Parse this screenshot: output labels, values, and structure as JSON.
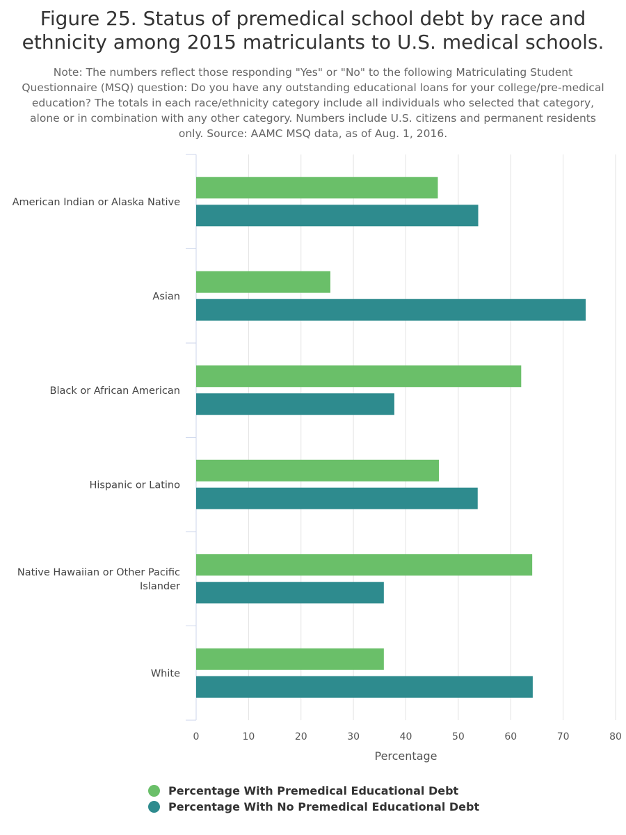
{
  "chart_data": {
    "type": "bar",
    "orientation": "horizontal",
    "title": "Figure 25. Status of premedical school debt by race and ethnicity among 2015 matriculants to U.S. medical schools.",
    "subtitle": "Note: The numbers reflect those responding \"Yes\" or \"No\" to the following Matriculating Student Questionnaire (MSQ) question: Do you have any outstanding educational loans for your college/pre-medical education? The totals in each race/ethnicity category include all individuals who selected that category, alone or in combination with any other category. Numbers include U.S. citizens and permanent residents only. Source: AAMC MSQ data, as of Aug. 1, 2016.",
    "categories": [
      [
        "American Indian or Alaska Native"
      ],
      [
        "Asian"
      ],
      [
        "Black or African American"
      ],
      [
        "Hispanic or Latino"
      ],
      [
        "Native Hawaiian or Other Pacific",
        "Islander"
      ],
      [
        "White"
      ]
    ],
    "series": [
      {
        "name": "Percentage With Premedical Educational Debt",
        "color": "#6abf69",
        "values": [
          46.1,
          25.6,
          62.0,
          46.3,
          64.1,
          35.8
        ]
      },
      {
        "name": "Percentage With No Premedical Educational Debt",
        "color": "#2e8b8e",
        "values": [
          53.8,
          74.3,
          37.8,
          53.7,
          35.8,
          64.2
        ]
      }
    ],
    "xlabel": "Percentage",
    "ylabel": "",
    "xlim": [
      0,
      80
    ],
    "xticks": [
      0,
      10,
      20,
      30,
      40,
      50,
      60,
      70,
      80
    ],
    "grid": true,
    "legend_position": "bottom"
  }
}
